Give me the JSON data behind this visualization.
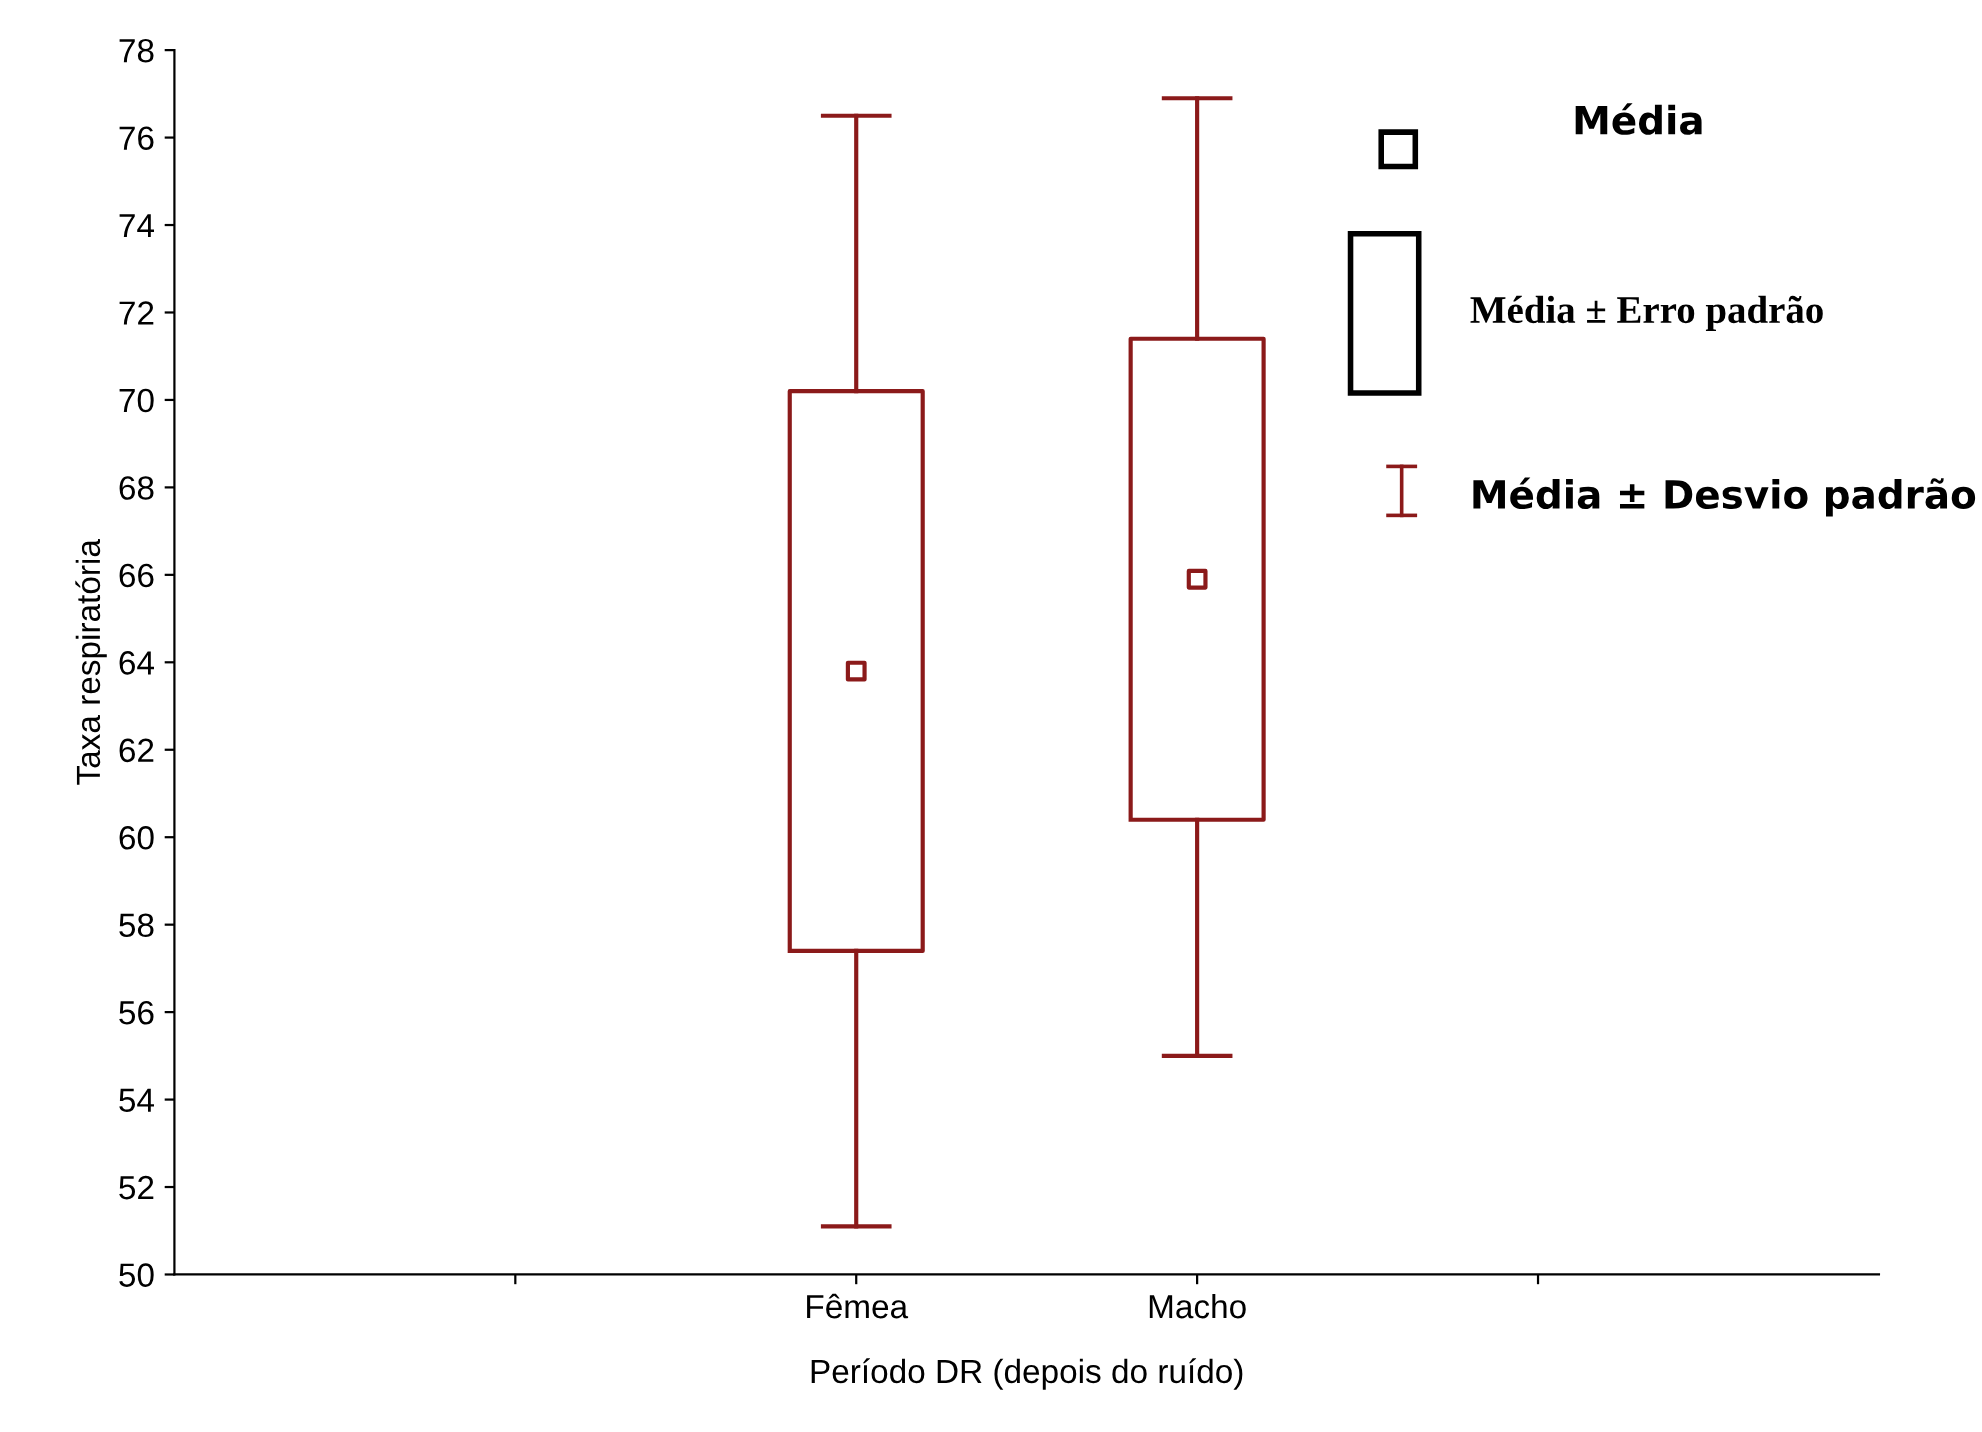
{
  "chart_data": {
    "type": "box",
    "xlabel": "Período DR (depois do ruído)",
    "ylabel": "Taxa respiratória",
    "categories": [
      null,
      "Fêmea",
      "Macho",
      null
    ],
    "boxes": [
      null,
      {
        "low": 51.1,
        "q1": 57.4,
        "q3": 70.2,
        "high": 76.5,
        "mean": 63.8
      },
      {
        "low": 55.0,
        "q1": 60.4,
        "q3": 71.4,
        "high": 76.9,
        "mean": 65.9
      },
      null
    ],
    "color": "#8b1a1a",
    "ylim": [
      50,
      78
    ],
    "yticks": [
      50,
      52,
      54,
      56,
      58,
      60,
      62,
      64,
      66,
      68,
      70,
      72,
      74,
      76,
      78
    ],
    "grid": false,
    "marker": "square",
    "annotations": [
      "Média",
      "Média ± Erro padrão",
      "Média ± Desvio padrão"
    ]
  }
}
